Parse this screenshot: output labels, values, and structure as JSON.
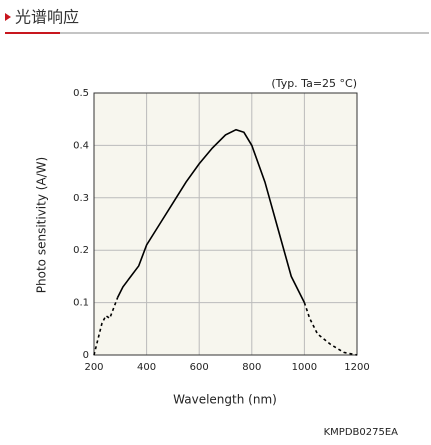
{
  "header": {
    "title": "光谱响应"
  },
  "chart_data": {
    "type": "line",
    "annotation": "(Typ. Ta=25 °C)",
    "xlabel": "Wavelength (nm)",
    "ylabel": "Photo sensitivity (A/W)",
    "footnote": "KMPDB0275EA",
    "xlim": [
      200,
      1200
    ],
    "xticks": [
      200,
      400,
      600,
      800,
      1000,
      1200
    ],
    "ylim": [
      0,
      0.5
    ],
    "yticks": [
      0,
      0.1,
      0.2,
      0.3,
      0.4,
      0.5
    ],
    "grid": true,
    "color": "#000000",
    "series": [
      {
        "style": "dashed",
        "x": [
          200,
          215,
          230,
          245,
          260,
          275,
          290
        ],
        "values": [
          0,
          0.03,
          0.06,
          0.075,
          0.07,
          0.09,
          0.11
        ]
      },
      {
        "style": "solid",
        "x": [
          290,
          310,
          340,
          370,
          385,
          400,
          450,
          500,
          550,
          600,
          650,
          700,
          740,
          770,
          800,
          850,
          900,
          950,
          1000
        ],
        "values": [
          0.11,
          0.13,
          0.15,
          0.17,
          0.19,
          0.21,
          0.25,
          0.29,
          0.33,
          0.365,
          0.395,
          0.42,
          0.43,
          0.425,
          0.4,
          0.33,
          0.24,
          0.15,
          0.1
        ]
      },
      {
        "style": "dashed",
        "x": [
          1000,
          1020,
          1050,
          1100,
          1150,
          1200
        ],
        "values": [
          0.1,
          0.07,
          0.04,
          0.02,
          0.005,
          0
        ]
      }
    ]
  }
}
